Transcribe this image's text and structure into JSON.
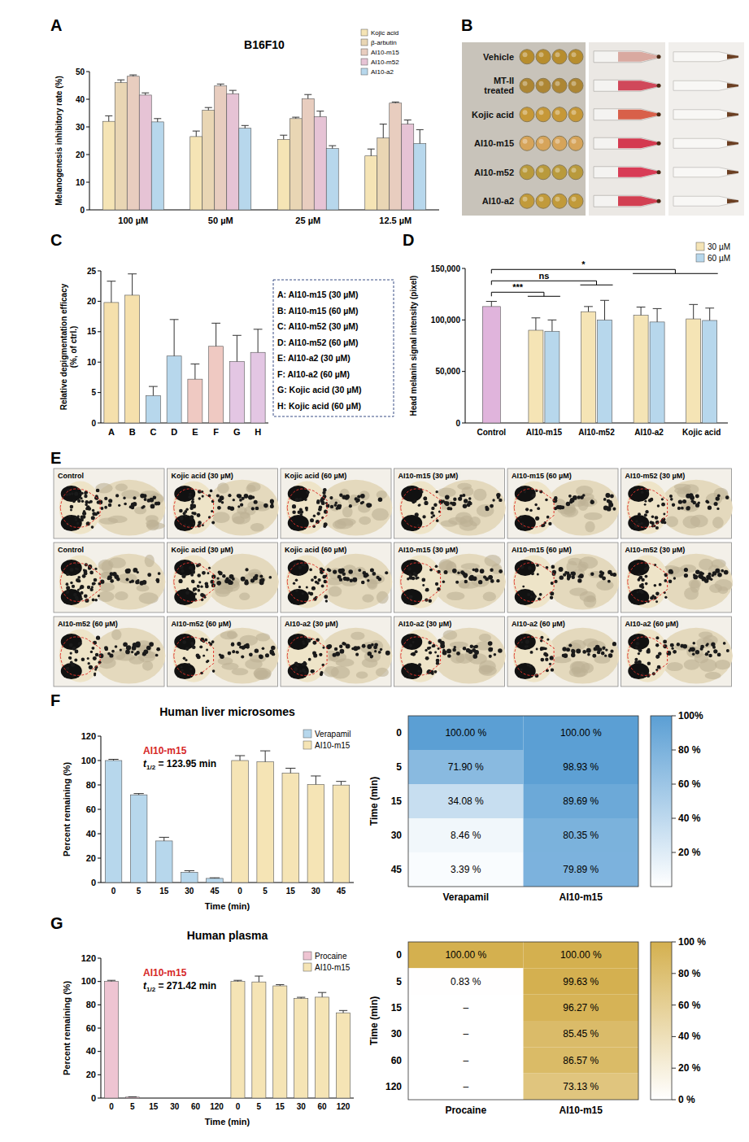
{
  "chart_data": [
    {
      "panel": "A",
      "type": "bar",
      "title": "B16F10",
      "y_label": "Melanogenesis inhibitory rate (%)",
      "categories": [
        "100 µM",
        "50 µM",
        "25 µM",
        "12.5 µM"
      ],
      "series": [
        {
          "name": "Kojic acid",
          "color": "#f5e4b5",
          "values": [
            32,
            26.5,
            25.5,
            19.5
          ],
          "errors": [
            2,
            2,
            1.5,
            2.5
          ]
        },
        {
          "name": "β-arbutin",
          "color": "#e9d6b4",
          "values": [
            46,
            36,
            33,
            26
          ],
          "errors": [
            1,
            1,
            0.5,
            5
          ]
        },
        {
          "name": "AI10-m15",
          "color": "#e8cdbf",
          "values": [
            48.3,
            44.8,
            40.2,
            38.6
          ],
          "errors": [
            0.5,
            0.7,
            1.5,
            0.4
          ]
        },
        {
          "name": "AI10-m52",
          "color": "#e6c3d5",
          "values": [
            41.5,
            42,
            33.7,
            31
          ],
          "errors": [
            0.8,
            1.2,
            2,
            1.5
          ]
        },
        {
          "name": "AI10-a2",
          "color": "#b7d7ec",
          "values": [
            31.8,
            29.5,
            22.2,
            24
          ],
          "errors": [
            1.2,
            1,
            1,
            5
          ]
        }
      ],
      "ylim": [
        0,
        50
      ],
      "yticks": [
        0,
        10,
        20,
        30,
        40,
        50
      ],
      "legend": "top-right"
    },
    {
      "panel": "C",
      "type": "bar",
      "y_label": "Relative depigmentation efficacy (%, of ctrl.)",
      "categories": [
        "A",
        "B",
        "C",
        "D",
        "E",
        "F",
        "G",
        "H"
      ],
      "values": [
        19.8,
        21,
        4.5,
        11,
        7.2,
        12.6,
        10.1,
        11.6
      ],
      "errors": [
        3.5,
        3.5,
        1.5,
        6,
        2.5,
        3.8,
        4.3,
        3.8
      ],
      "colors": [
        "#f5e0ac",
        "#f5e0ac",
        "#b7d7ec",
        "#b7d7ec",
        "#efc9c2",
        "#efc9c2",
        "#e3c6e3",
        "#e3c6e3"
      ],
      "ylim": [
        0,
        25
      ],
      "yticks": [
        0,
        5,
        10,
        15,
        20,
        25
      ],
      "key": [
        "A: AI10-m15 (30 µM)",
        "B: AI10-m15 (60 µM)",
        "C: AI10-m52 (30 µM)",
        "D: AI10-m52 (60 µM)",
        "E: AI10-a2 (30 µM)",
        "F: AI10-a2 (60 µM)",
        "G: Kojic acid (30 µM)",
        "H: Kojic acid (60 µM)"
      ]
    },
    {
      "panel": "D",
      "type": "bar",
      "y_label": "Head melanin signal intensity (pixel)",
      "categories": [
        "Control",
        "AI10-m15",
        "AI10-m52",
        "AI10-a2",
        "Kojic acid"
      ],
      "control": {
        "value": 113000,
        "error": 5000,
        "color": "#e0b4dc"
      },
      "series": [
        {
          "name": "30 µM",
          "color": "#f5e4b5",
          "values": [
            null,
            90000,
            108000,
            104500,
            101000
          ],
          "errors": [
            null,
            12000,
            5000,
            8000,
            14000
          ]
        },
        {
          "name": "60 µM",
          "color": "#b7d7ec",
          "values": [
            null,
            89000,
            100000,
            98000,
            99500
          ],
          "errors": [
            null,
            11000,
            19000,
            13000,
            12000
          ]
        }
      ],
      "significance": [
        {
          "text": "***",
          "categories": [
            "AI10-m15"
          ]
        },
        {
          "text": "ns",
          "categories": [
            "AI10-m52"
          ]
        },
        {
          "text": "*",
          "categories": [
            "AI10-a2",
            "Kojic acid"
          ]
        }
      ],
      "ylim": [
        0,
        150000
      ],
      "yticks": [
        0,
        {
          "value": 50000,
          "label": "50,000"
        },
        {
          "value": 100000,
          "label": "100,000"
        },
        {
          "value": 150000,
          "label": "150,000"
        }
      ],
      "legend": "top-right"
    },
    {
      "panel": "F",
      "type": "bar",
      "title": "Human liver microsomes",
      "y_label": "Percent remaining (%)",
      "x_label": "Time (min)",
      "categories": [
        "0",
        "5",
        "15",
        "30",
        "45"
      ],
      "series": [
        {
          "name": "Verapamil",
          "color": "#b7d7ec",
          "values": [
            100,
            71.9,
            34.08,
            8.46,
            3.39
          ],
          "errors": [
            1,
            1,
            3,
            1.2,
            0.5
          ]
        },
        {
          "name": "AI10-m15",
          "color": "#f5e4b5",
          "values": [
            100,
            98.93,
            89.69,
            80.35,
            79.89
          ],
          "errors": [
            4,
            9,
            4,
            7,
            3
          ]
        }
      ],
      "annotation": {
        "title": "AI10-m15",
        "symbol": "t",
        "subscript": "1/2",
        "text": " = 123.95 min",
        "color": "#d62728"
      },
      "ylim": [
        0,
        120
      ],
      "yticks": [
        0,
        20,
        40,
        60,
        80,
        100,
        120
      ],
      "legend": "top-right"
    },
    {
      "type": "heatmap",
      "y_label": "Time (min)",
      "x_categories": [
        "Verapamil",
        "AI10-m15"
      ],
      "y_categories": [
        "0",
        "5",
        "15",
        "30",
        "45"
      ],
      "cells": [
        [
          100,
          100
        ],
        [
          71.9,
          98.93
        ],
        [
          34.08,
          89.69
        ],
        [
          8.46,
          80.35
        ],
        [
          3.39,
          79.89
        ]
      ],
      "cell_labels": [
        [
          "100.00 %",
          "100.00 %"
        ],
        [
          "71.90 %",
          "98.93 %"
        ],
        [
          "34.08 %",
          "89.69 %"
        ],
        [
          "8.46 %",
          "80.35 %"
        ],
        [
          "3.39 %",
          "79.89 %"
        ]
      ],
      "data_labels": true,
      "colorbar": {
        "range": [
          0,
          100
        ],
        "color": "#5b9fd4",
        "ticks": [
          {
            "value": 20,
            "label": "20 %"
          },
          {
            "value": 40,
            "label": "40 %"
          },
          {
            "value": 60,
            "label": "60 %"
          },
          {
            "value": 80,
            "label": "80 %"
          },
          {
            "value": 100,
            "label": "100%"
          }
        ]
      }
    },
    {
      "panel": "G",
      "type": "bar",
      "title": "Human plasma",
      "y_label": "Percent remaining (%)",
      "x_label": "Time (min)",
      "categories": [
        "0",
        "5",
        "15",
        "30",
        "60",
        "120"
      ],
      "series": [
        {
          "name": "Procaine",
          "color": "#eec4d2",
          "values": [
            100,
            0.83,
            null,
            null,
            null,
            null
          ],
          "errors": [
            1,
            0.3,
            null,
            null,
            null,
            null
          ]
        },
        {
          "name": "AI10-m15",
          "color": "#f5e4b5",
          "values": [
            100,
            99.63,
            96.27,
            85.45,
            86.57,
            73.13
          ],
          "errors": [
            1,
            5,
            1,
            1,
            4,
            2
          ]
        }
      ],
      "annotation": {
        "title": "AI10-m15",
        "symbol": "t",
        "subscript": "1/2",
        "text": " = 271.42 min",
        "color": "#d62728"
      },
      "ylim": [
        0,
        120
      ],
      "yticks": [
        0,
        20,
        40,
        60,
        80,
        100,
        120
      ],
      "legend": "top-right"
    },
    {
      "type": "heatmap",
      "y_label": "Time (min)",
      "x_categories": [
        "Procaine",
        "AI10-m15"
      ],
      "y_categories": [
        "0",
        "5",
        "15",
        "30",
        "60",
        "120"
      ],
      "cells": [
        [
          100,
          100
        ],
        [
          0.83,
          99.63
        ],
        [
          null,
          96.27
        ],
        [
          null,
          85.45
        ],
        [
          null,
          86.57
        ],
        [
          null,
          73.13
        ]
      ],
      "cell_labels": [
        [
          "100.00 %",
          "100.00 %"
        ],
        [
          "0.83 %",
          "99.63 %"
        ],
        [
          "–",
          "96.27 %"
        ],
        [
          "–",
          "85.45 %"
        ],
        [
          "–",
          "86.57 %"
        ],
        [
          "–",
          "73.13 %"
        ]
      ],
      "data_labels": true,
      "colorbar": {
        "range": [
          0,
          100
        ],
        "color": "#d4b04f",
        "ticks": [
          {
            "value": 0,
            "label": "0 %"
          },
          {
            "value": 20,
            "label": "20 %"
          },
          {
            "value": 40,
            "label": "40 %"
          },
          {
            "value": 60,
            "label": "60 %"
          },
          {
            "value": 80,
            "label": "80 %"
          },
          {
            "value": 100,
            "label": "100 %"
          }
        ]
      }
    }
  ],
  "panel_B": {
    "panel": "B",
    "row_labels": [
      "Vehicle",
      "MT-II treated",
      "Kojic acid",
      "AI10-m15",
      "AI10-m52",
      "AI10-a2"
    ]
  },
  "panel_E": {
    "panel": "E",
    "captions": [
      [
        "Control",
        "Kojic acid (30 µM)",
        "Kojic acid (60 µM)",
        "AI10-m15 (30 µM)",
        "AI10-m15 (60 µM)",
        "AI10-m52 (30 µM)"
      ],
      [
        "Control",
        "Kojic acid (30 µM)",
        "Kojic acid (60 µM)",
        "AI10-m15 (30 µM)",
        "AI10-m15 (60 µM)",
        "AI10-m52 (30 µM)"
      ],
      [
        "AI10-m52 (60 µM)",
        "AI10-m52 (60 µM)",
        "AI10-a2 (30 µM)",
        "AI10-a2 (30 µM)",
        "AI10-a2 (60 µM)",
        "AI10-a2 (60 µM)"
      ]
    ]
  }
}
